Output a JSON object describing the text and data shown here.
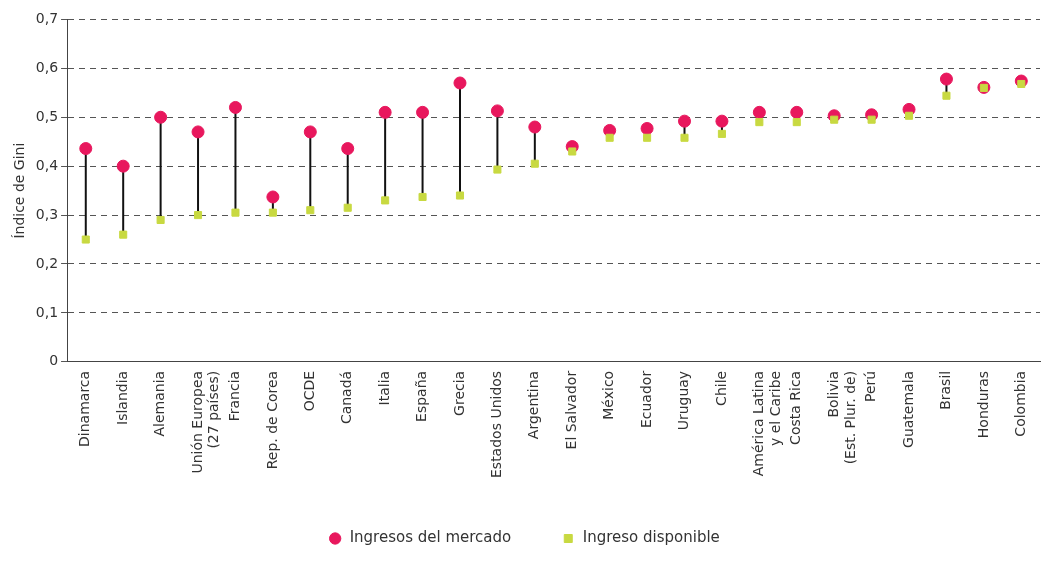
{
  "chart_data": {
    "type": "scatter",
    "ylabel": "Índice de Gini",
    "categories": [
      "Dinamarca",
      "Islandia",
      "Alemania",
      "Unión Europea\n(27 países)",
      "Francia",
      "Rep. de Corea",
      "OCDE",
      "Canadá",
      "Italia",
      "España",
      "Grecia",
      "Estados Unidos",
      "Argentina",
      "El Salvador",
      "México",
      "Ecuador",
      "Uruguay",
      "Chile",
      "América Latina\ny el Caribe",
      "Costa Rica",
      "Bolivia\n(Est. Plur. de)",
      "Perú",
      "Guatemala",
      "Brasil",
      "Honduras",
      "Colombia"
    ],
    "series": [
      {
        "name": "Ingresos del mercado",
        "color": "#e8175d",
        "marker": "circle",
        "values": [
          0.436,
          0.4,
          0.5,
          0.47,
          0.52,
          0.337,
          0.47,
          0.436,
          0.51,
          0.51,
          0.57,
          0.513,
          0.48,
          0.44,
          0.473,
          0.477,
          0.492,
          0.492,
          0.51,
          0.51,
          0.503,
          0.505,
          0.516,
          0.578,
          0.561,
          0.574
        ]
      },
      {
        "name": "Ingreso disponible",
        "color": "#c8d941",
        "marker": "square",
        "values": [
          0.25,
          0.26,
          0.29,
          0.3,
          0.305,
          0.305,
          0.31,
          0.315,
          0.33,
          0.337,
          0.34,
          0.393,
          0.405,
          0.43,
          0.458,
          0.458,
          0.458,
          0.466,
          0.49,
          0.49,
          0.495,
          0.495,
          0.503,
          0.544,
          0.56,
          0.568
        ]
      }
    ],
    "ylim": [
      0,
      0.7
    ],
    "yticks": [
      {
        "value": 0,
        "label": "0"
      },
      {
        "value": 0.1,
        "label": "0,1"
      },
      {
        "value": 0.2,
        "label": "0,2"
      },
      {
        "value": 0.3,
        "label": "0,3"
      },
      {
        "value": 0.4,
        "label": "0,4"
      },
      {
        "value": 0.5,
        "label": "0,5"
      },
      {
        "value": 0.6,
        "label": "0,6"
      },
      {
        "value": 0.7,
        "label": "0,7"
      }
    ],
    "grid": "y",
    "legend": "bottom"
  }
}
